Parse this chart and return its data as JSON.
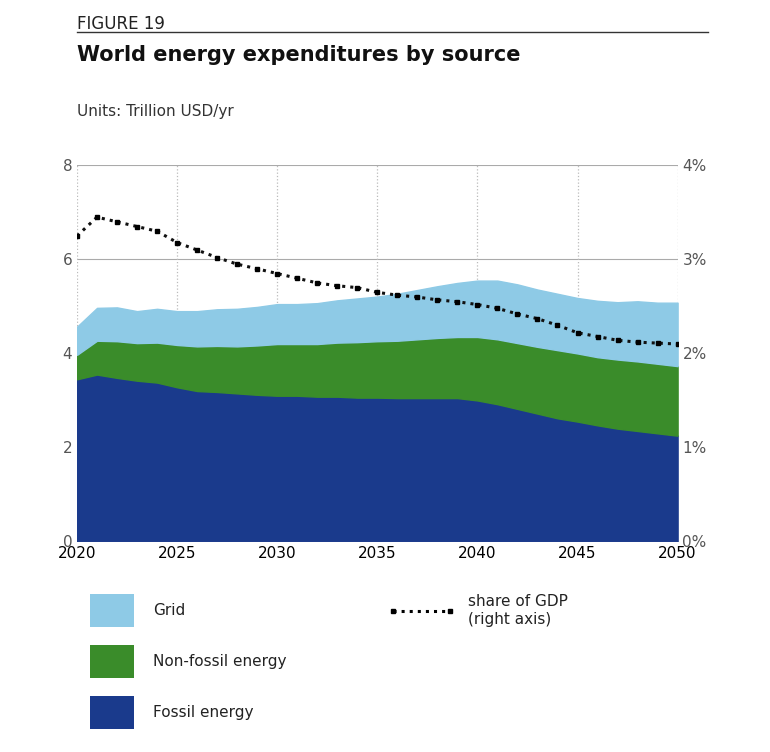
{
  "figure_label": "FIGURE 19",
  "title": "World energy expenditures by source",
  "units_label": "Units: Trillion USD/yr",
  "background_color": "#ffffff",
  "colors": {
    "fossil": "#1a3a8c",
    "nonfossil": "#3a8c2a",
    "grid": "#8ecae6",
    "gdp_line": "#111111"
  },
  "years": [
    2020,
    2021,
    2022,
    2023,
    2024,
    2025,
    2026,
    2027,
    2028,
    2029,
    2030,
    2031,
    2032,
    2033,
    2034,
    2035,
    2036,
    2037,
    2038,
    2039,
    2040,
    2041,
    2042,
    2043,
    2044,
    2045,
    2046,
    2047,
    2048,
    2049,
    2050
  ],
  "fossil": [
    3.45,
    3.55,
    3.48,
    3.42,
    3.38,
    3.28,
    3.2,
    3.18,
    3.15,
    3.12,
    3.1,
    3.1,
    3.08,
    3.08,
    3.06,
    3.06,
    3.05,
    3.05,
    3.05,
    3.05,
    3.0,
    2.92,
    2.82,
    2.72,
    2.62,
    2.55,
    2.47,
    2.4,
    2.35,
    2.3,
    2.25
  ],
  "nonfossil": [
    0.52,
    0.72,
    0.78,
    0.8,
    0.85,
    0.9,
    0.95,
    0.98,
    1.0,
    1.05,
    1.1,
    1.1,
    1.12,
    1.15,
    1.18,
    1.2,
    1.22,
    1.25,
    1.28,
    1.3,
    1.35,
    1.38,
    1.4,
    1.42,
    1.45,
    1.45,
    1.45,
    1.47,
    1.48,
    1.48,
    1.48
  ],
  "grid_vals": [
    0.6,
    0.7,
    0.72,
    0.68,
    0.72,
    0.72,
    0.75,
    0.78,
    0.8,
    0.82,
    0.85,
    0.85,
    0.87,
    0.9,
    0.93,
    0.95,
    1.0,
    1.05,
    1.1,
    1.15,
    1.2,
    1.25,
    1.25,
    1.22,
    1.2,
    1.18,
    1.2,
    1.22,
    1.28,
    1.3,
    1.35
  ],
  "gdp_share": [
    3.25,
    3.45,
    3.4,
    3.35,
    3.3,
    3.18,
    3.1,
    3.02,
    2.95,
    2.9,
    2.85,
    2.8,
    2.75,
    2.72,
    2.7,
    2.65,
    2.62,
    2.6,
    2.57,
    2.55,
    2.52,
    2.48,
    2.42,
    2.37,
    2.3,
    2.22,
    2.18,
    2.14,
    2.12,
    2.11,
    2.1
  ],
  "ylim": [
    0,
    8
  ],
  "yticks": [
    0,
    2,
    4,
    6,
    8
  ],
  "ytick_labels": [
    "0",
    "2",
    "4",
    "6",
    "8"
  ],
  "y2lim": [
    0,
    4
  ],
  "y2ticks": [
    0,
    1,
    2,
    3,
    4
  ],
  "y2tick_labels": [
    "0%",
    "1%",
    "2%",
    "3%",
    "4%"
  ],
  "xlim": [
    2020,
    2050
  ],
  "xticks": [
    2020,
    2025,
    2030,
    2035,
    2040,
    2045,
    2050
  ],
  "hgrid_color": "#aaaaaa",
  "vgrid_color": "#bbbbbb",
  "labels_col1": [
    "Grid",
    "Non-fossil energy",
    "Fossil energy"
  ],
  "legend_dashed_label": "share of GDP\n(right axis)"
}
